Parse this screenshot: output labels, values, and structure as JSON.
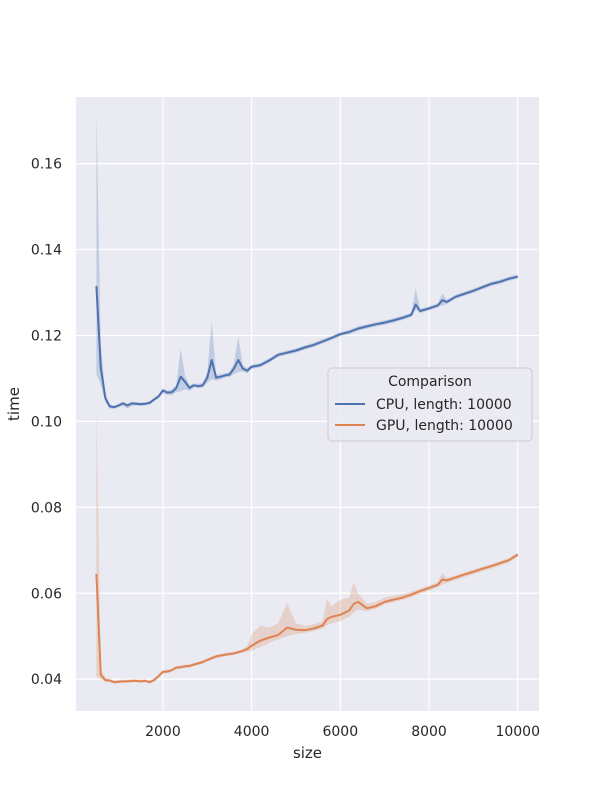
{
  "chart_data": {
    "type": "line",
    "xlabel": "size",
    "ylabel": "time",
    "xlim": [
      40,
      10480
    ],
    "ylim": [
      0.0326,
      0.1755
    ],
    "x_ticks": [
      2000,
      4000,
      6000,
      8000,
      10000
    ],
    "y_ticks": [
      0.04,
      0.06,
      0.08,
      0.1,
      0.12,
      0.14,
      0.16
    ],
    "x_tick_labels": [
      "2000",
      "4000",
      "6000",
      "8000",
      "10000"
    ],
    "y_tick_labels": [
      "0.04",
      "0.06",
      "0.08",
      "0.10",
      "0.12",
      "0.14",
      "0.16"
    ],
    "grid": true,
    "legend": {
      "title": "Comparison",
      "placement": "center-right",
      "entries": [
        "CPU, length: 10000",
        "GPU, length: 10000"
      ]
    },
    "series": [
      {
        "name": "CPU, length: 10000",
        "color": "#4c72b0",
        "x": [
          500,
          600,
          700,
          800,
          900,
          1000,
          1100,
          1200,
          1300,
          1400,
          1500,
          1600,
          1700,
          1800,
          1900,
          2000,
          2100,
          2200,
          2300,
          2400,
          2500,
          2600,
          2700,
          2800,
          2900,
          3000,
          3100,
          3200,
          3300,
          3400,
          3500,
          3600,
          3700,
          3800,
          3900,
          4000,
          4200,
          4400,
          4600,
          4800,
          5000,
          5200,
          5400,
          5600,
          5800,
          6000,
          6200,
          6400,
          6600,
          6800,
          7000,
          7200,
          7400,
          7600,
          7700,
          7800,
          8000,
          8200,
          8300,
          8400,
          8600,
          8800,
          9000,
          9200,
          9400,
          9600,
          9800,
          10000
        ],
        "values": [
          0.1315,
          0.1125,
          0.1055,
          0.1035,
          0.1033,
          0.1037,
          0.1042,
          0.1037,
          0.1042,
          0.1041,
          0.104,
          0.1041,
          0.1043,
          0.1051,
          0.1058,
          0.1072,
          0.1067,
          0.1068,
          0.1077,
          0.1104,
          0.1092,
          0.1078,
          0.1084,
          0.1082,
          0.1084,
          0.1102,
          0.1143,
          0.1102,
          0.1104,
          0.1107,
          0.1109,
          0.1123,
          0.1143,
          0.1123,
          0.1118,
          0.1127,
          0.1131,
          0.1142,
          0.1155,
          0.116,
          0.1165,
          0.1172,
          0.1178,
          0.1186,
          0.1194,
          0.1203,
          0.1208,
          0.1216,
          0.1221,
          0.1226,
          0.123,
          0.1235,
          0.1241,
          0.1248,
          0.1272,
          0.1257,
          0.1263,
          0.127,
          0.1282,
          0.1278,
          0.129,
          0.1297,
          0.1304,
          0.1312,
          0.132,
          0.1325,
          0.1332,
          0.1337
        ],
        "band_upper": [
          0.1722,
          0.118,
          0.1062,
          0.104,
          0.1037,
          0.1041,
          0.1046,
          0.1042,
          0.1046,
          0.1045,
          0.1044,
          0.1045,
          0.1047,
          0.1055,
          0.1062,
          0.1077,
          0.1072,
          0.1074,
          0.1085,
          0.1169,
          0.1106,
          0.1084,
          0.1089,
          0.1087,
          0.109,
          0.1115,
          0.1233,
          0.1109,
          0.111,
          0.1112,
          0.1115,
          0.1135,
          0.1198,
          0.113,
          0.1124,
          0.1132,
          0.1136,
          0.1147,
          0.116,
          0.1165,
          0.117,
          0.1177,
          0.1183,
          0.1191,
          0.1199,
          0.1208,
          0.1213,
          0.1221,
          0.1226,
          0.1231,
          0.1235,
          0.124,
          0.1246,
          0.1253,
          0.131,
          0.1262,
          0.1268,
          0.1275,
          0.1298,
          0.1283,
          0.1295,
          0.1302,
          0.1309,
          0.1317,
          0.1325,
          0.133,
          0.1337,
          0.1342
        ],
        "band_lower": [
          0.111,
          0.1085,
          0.1045,
          0.103,
          0.1029,
          0.1033,
          0.1036,
          0.103,
          0.1036,
          0.1037,
          0.1036,
          0.1037,
          0.1039,
          0.1047,
          0.1054,
          0.1065,
          0.1062,
          0.1061,
          0.1068,
          0.107,
          0.1075,
          0.1071,
          0.1079,
          0.1077,
          0.1078,
          0.109,
          0.1098,
          0.1095,
          0.1098,
          0.1102,
          0.1103,
          0.111,
          0.1115,
          0.1116,
          0.1112,
          0.1122,
          0.1126,
          0.1137,
          0.115,
          0.1155,
          0.116,
          0.1167,
          0.1173,
          0.1181,
          0.1189,
          0.1198,
          0.1203,
          0.1211,
          0.1216,
          0.1221,
          0.1225,
          0.123,
          0.1236,
          0.1243,
          0.126,
          0.1252,
          0.1258,
          0.1265,
          0.127,
          0.1273,
          0.1285,
          0.1292,
          0.1299,
          0.1307,
          0.1315,
          0.132,
          0.1327,
          0.1332
        ]
      },
      {
        "name": "GPU, length: 10000",
        "color": "#dd8452",
        "x": [
          500,
          600,
          700,
          800,
          900,
          1000,
          1100,
          1200,
          1300,
          1400,
          1500,
          1600,
          1700,
          1800,
          1900,
          2000,
          2100,
          2200,
          2300,
          2400,
          2500,
          2600,
          2700,
          2800,
          2900,
          3000,
          3200,
          3400,
          3600,
          3800,
          3900,
          4000,
          4200,
          4400,
          4600,
          4800,
          5000,
          5200,
          5400,
          5600,
          5700,
          5800,
          6000,
          6200,
          6300,
          6400,
          6600,
          6800,
          7000,
          7200,
          7400,
          7600,
          7800,
          8000,
          8200,
          8300,
          8400,
          8600,
          8800,
          9000,
          9200,
          9400,
          9600,
          9800,
          10000
        ],
        "values": [
          0.0645,
          0.041,
          0.0398,
          0.0397,
          0.0393,
          0.0394,
          0.0395,
          0.0395,
          0.0396,
          0.0396,
          0.0395,
          0.0396,
          0.0393,
          0.0398,
          0.0407,
          0.0417,
          0.0418,
          0.0421,
          0.0427,
          0.0428,
          0.043,
          0.0431,
          0.0434,
          0.0437,
          0.044,
          0.0445,
          0.0453,
          0.0457,
          0.046,
          0.0466,
          0.047,
          0.0478,
          0.049,
          0.0497,
          0.0503,
          0.052,
          0.0515,
          0.0514,
          0.0518,
          0.0525,
          0.054,
          0.0545,
          0.055,
          0.056,
          0.0575,
          0.058,
          0.0565,
          0.057,
          0.058,
          0.0585,
          0.059,
          0.0597,
          0.0605,
          0.0612,
          0.062,
          0.0632,
          0.063,
          0.0637,
          0.0644,
          0.065,
          0.0657,
          0.0663,
          0.067,
          0.0677,
          0.069
        ],
        "band_upper": [
          0.1028,
          0.0425,
          0.0404,
          0.0401,
          0.0397,
          0.0398,
          0.0399,
          0.0399,
          0.04,
          0.04,
          0.0399,
          0.04,
          0.0397,
          0.0402,
          0.0411,
          0.0421,
          0.0422,
          0.0425,
          0.0431,
          0.0432,
          0.0434,
          0.0435,
          0.0438,
          0.0441,
          0.0444,
          0.0449,
          0.0457,
          0.0461,
          0.0464,
          0.047,
          0.0478,
          0.0505,
          0.0525,
          0.052,
          0.053,
          0.0577,
          0.053,
          0.0524,
          0.0528,
          0.0535,
          0.0587,
          0.057,
          0.0585,
          0.059,
          0.0625,
          0.06,
          0.0575,
          0.058,
          0.059,
          0.0594,
          0.0598,
          0.0604,
          0.0611,
          0.0618,
          0.0626,
          0.0648,
          0.0636,
          0.0642,
          0.0649,
          0.0655,
          0.0662,
          0.0668,
          0.0675,
          0.0682,
          0.0694
        ],
        "band_lower": [
          0.0407,
          0.04,
          0.0394,
          0.0393,
          0.039,
          0.0391,
          0.0392,
          0.0392,
          0.0393,
          0.0393,
          0.0392,
          0.0393,
          0.039,
          0.0395,
          0.0403,
          0.0413,
          0.0414,
          0.0417,
          0.0423,
          0.0424,
          0.0426,
          0.0427,
          0.043,
          0.0433,
          0.0436,
          0.0441,
          0.0449,
          0.0453,
          0.0456,
          0.0462,
          0.0464,
          0.0466,
          0.0475,
          0.0485,
          0.0493,
          0.05,
          0.0505,
          0.0508,
          0.0512,
          0.0518,
          0.0525,
          0.053,
          0.0535,
          0.0545,
          0.0555,
          0.0562,
          0.0558,
          0.0564,
          0.0574,
          0.0579,
          0.0584,
          0.0591,
          0.0599,
          0.0606,
          0.0614,
          0.062,
          0.0624,
          0.0631,
          0.0638,
          0.0644,
          0.0651,
          0.0657,
          0.0664,
          0.0671,
          0.0685
        ]
      }
    ]
  }
}
